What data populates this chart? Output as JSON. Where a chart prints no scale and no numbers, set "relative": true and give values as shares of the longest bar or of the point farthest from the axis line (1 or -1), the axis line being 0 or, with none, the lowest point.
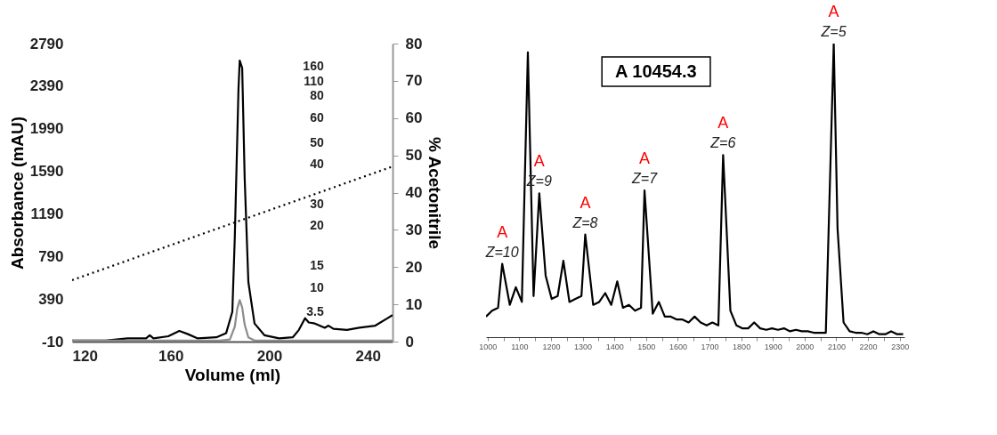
{
  "chart_data": [
    {
      "type": "line",
      "xlabel": "Volume (ml)",
      "ylabel": "Absorbance (mAU)",
      "y2label": "% Acetonitrile",
      "xlim": [
        120,
        250
      ],
      "xticks": [
        120,
        160,
        200,
        240
      ],
      "ylim": [
        -10,
        2790
      ],
      "yticks": [
        -10,
        390,
        790,
        1190,
        1590,
        1990,
        2390,
        2790
      ],
      "y2lim": [
        0,
        80
      ],
      "y2ticks": [
        0,
        10,
        20,
        30,
        40,
        50,
        60,
        70,
        80
      ],
      "grid": false,
      "legend": false,
      "marker": "none",
      "annotations": [
        "160",
        "110",
        "80",
        "60",
        "50",
        "40",
        "30",
        "20",
        "15",
        "10",
        "3.5"
      ],
      "series": [
        {
          "color": "#000000",
          "line_style": "solid",
          "x": [
            120,
            133.5,
            142.5,
            150,
            151.5,
            153,
            159,
            163.5,
            167,
            171,
            178.5,
            182.5,
            185,
            186,
            187.5,
            188,
            189,
            190,
            191.5,
            194,
            198,
            204,
            209.5,
            212,
            214.5,
            216,
            218.5,
            222.5,
            224,
            226,
            231.5,
            236.5,
            243,
            248,
            250
          ],
          "values": [
            0,
            0,
            20,
            20,
            50,
            20,
            40,
            90,
            60,
            20,
            30,
            70,
            270,
            970,
            2370,
            2630,
            2560,
            1530,
            550,
            160,
            50,
            20,
            30,
            100,
            210,
            170,
            160,
            120,
            140,
            110,
            100,
            120,
            140,
            210,
            240
          ]
        },
        {
          "color": "#8c8c8c",
          "line_style": "solid",
          "x": [
            120,
            180,
            184,
            186,
            187,
            188,
            189,
            190,
            191.5,
            194,
            250
          ],
          "values": [
            0,
            0,
            10,
            130,
            300,
            380,
            310,
            150,
            30,
            0,
            0
          ]
        },
        {
          "color": "#000000",
          "line_style": "dotted",
          "axis": "y2",
          "x": [
            120,
            250
          ],
          "values": [
            16.5,
            47
          ]
        }
      ]
    },
    {
      "type": "line",
      "relative": true,
      "grid": false,
      "legend": false,
      "marker": "none",
      "xlim": [
        995,
        2315
      ],
      "xticks": [
        1000,
        {
          "value": 1050,
          "label": null
        },
        1100,
        {
          "value": 1150,
          "label": null
        },
        1200,
        {
          "value": 1250,
          "label": null
        },
        1300,
        {
          "value": 1350,
          "label": null
        },
        1400,
        {
          "value": 1450,
          "label": null
        },
        1500,
        {
          "value": 1550,
          "label": null
        },
        1600,
        {
          "value": 1650,
          "label": null
        },
        1700,
        {
          "value": 1750,
          "label": null
        },
        1800,
        {
          "value": 1850,
          "label": null
        },
        1900,
        {
          "value": 1950,
          "label": null
        },
        2000,
        {
          "value": 2050,
          "label": null
        },
        2100,
        {
          "value": 2150,
          "label": null
        },
        2200,
        {
          "value": 2250,
          "label": null
        },
        2300
      ],
      "annotations": [
        "A      10454.3",
        {
          "text": "A",
          "x": 1046,
          "y": 0.25
        },
        {
          "text": "Z=10",
          "x": 1046,
          "y": 0.25
        },
        {
          "text": "A",
          "x": 1163,
          "y": 0.49
        },
        {
          "text": "Z=9",
          "x": 1163,
          "y": 0.49
        },
        {
          "text": "A",
          "x": 1308,
          "y": 0.35
        },
        {
          "text": "Z=8",
          "x": 1308,
          "y": 0.35
        },
        {
          "text": "A",
          "x": 1495,
          "y": 0.5
        },
        {
          "text": "Z=7",
          "x": 1495,
          "y": 0.5
        },
        {
          "text": "A",
          "x": 1743,
          "y": 0.62
        },
        {
          "text": "Z=6",
          "x": 1743,
          "y": 0.62
        },
        {
          "text": "A",
          "x": 2092,
          "y": 1.0
        },
        {
          "text": "Z=5",
          "x": 2092,
          "y": 1.0
        }
      ],
      "series": [
        {
          "color": "#000000",
          "line_style": "solid",
          "x": [
            995,
            1014,
            1033,
            1046,
            1070,
            1089,
            1108,
            1127,
            1145,
            1163,
            1183,
            1202,
            1221,
            1239,
            1258,
            1277,
            1296,
            1308,
            1333,
            1352,
            1371,
            1390,
            1409,
            1427,
            1446,
            1465,
            1484,
            1495,
            1521,
            1540,
            1559,
            1578,
            1597,
            1615,
            1634,
            1653,
            1672,
            1691,
            1709,
            1728,
            1743,
            1766,
            1785,
            1803,
            1822,
            1841,
            1860,
            1879,
            1897,
            1916,
            1935,
            1954,
            1973,
            1991,
            2010,
            2029,
            2048,
            2067,
            2092,
            2104,
            2123,
            2142,
            2161,
            2179,
            2198,
            2217,
            2236,
            2255,
            2273,
            2292,
            2311
          ],
          "values": [
            0.07,
            0.09,
            0.1,
            0.25,
            0.11,
            0.17,
            0.12,
            0.97,
            0.14,
            0.49,
            0.21,
            0.13,
            0.14,
            0.26,
            0.12,
            0.13,
            0.14,
            0.35,
            0.11,
            0.12,
            0.15,
            0.11,
            0.19,
            0.1,
            0.11,
            0.09,
            0.1,
            0.5,
            0.08,
            0.12,
            0.07,
            0.07,
            0.06,
            0.06,
            0.05,
            0.07,
            0.05,
            0.04,
            0.05,
            0.04,
            0.62,
            0.09,
            0.04,
            0.03,
            0.03,
            0.05,
            0.03,
            0.025,
            0.03,
            0.025,
            0.03,
            0.02,
            0.025,
            0.02,
            0.02,
            0.015,
            0.015,
            0.015,
            1.0,
            0.37,
            0.05,
            0.02,
            0.015,
            0.015,
            0.01,
            0.02,
            0.01,
            0.01,
            0.02,
            0.01,
            0.01
          ]
        }
      ]
    }
  ]
}
